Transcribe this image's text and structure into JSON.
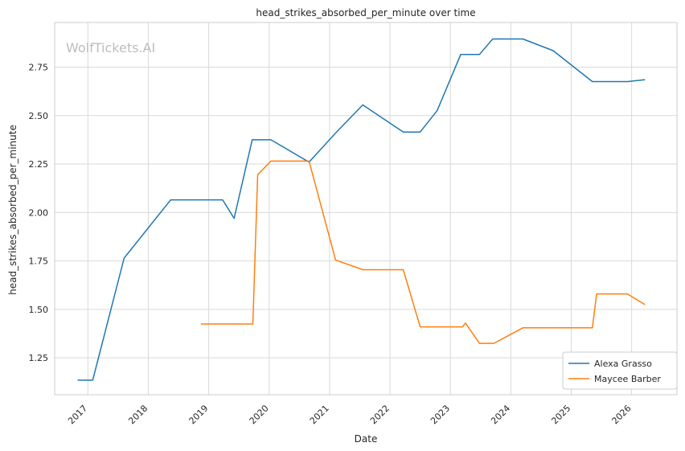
{
  "watermark": "WolfTickets.AI",
  "chart_data": {
    "type": "line",
    "title": "head_strikes_absorbed_per_minute over time",
    "xlabel": "Date",
    "ylabel": "head_strikes_absorbed_per_minute",
    "xlim": [
      2016.45,
      2026.75
    ],
    "ylim": [
      1.06,
      2.98
    ],
    "xticks": [
      2017,
      2018,
      2019,
      2020,
      2021,
      2022,
      2023,
      2024,
      2025,
      2026
    ],
    "xtick_labels": [
      "2017",
      "2018",
      "2019",
      "2020",
      "2021",
      "2022",
      "2023",
      "2024",
      "2025",
      "2026"
    ],
    "yticks": [
      1.25,
      1.5,
      1.75,
      2.0,
      2.25,
      2.5,
      2.75
    ],
    "ytick_labels": [
      "1.25",
      "1.50",
      "1.75",
      "2.00",
      "2.25",
      "2.50",
      "2.75"
    ],
    "grid": true,
    "legend_position": "lower-right",
    "series": [
      {
        "name": "Alexa Grasso",
        "color": "#1f77b4",
        "x": [
          2016.83,
          2017.08,
          2017.6,
          2018.37,
          2019.23,
          2019.42,
          2019.72,
          2020.03,
          2020.66,
          2021.1,
          2021.55,
          2022.22,
          2022.5,
          2022.78,
          2023.17,
          2023.48,
          2023.7,
          2024.2,
          2024.7,
          2025.35,
          2025.93,
          2026.22
        ],
        "y": [
          1.135,
          1.135,
          1.765,
          2.065,
          2.065,
          1.97,
          2.375,
          2.375,
          2.26,
          2.41,
          2.555,
          2.415,
          2.415,
          2.525,
          2.815,
          2.815,
          2.895,
          2.895,
          2.835,
          2.675,
          2.675,
          2.685
        ]
      },
      {
        "name": "Maycee Barber",
        "color": "#ff7f0e",
        "x": [
          2018.87,
          2019.73,
          2019.81,
          2020.03,
          2020.66,
          2021.1,
          2021.55,
          2022.22,
          2022.5,
          2022.78,
          2023.2,
          2023.25,
          2023.48,
          2023.72,
          2024.2,
          2024.7,
          2025.35,
          2025.42,
          2025.93,
          2026.22
        ],
        "y": [
          1.425,
          1.425,
          2.195,
          2.265,
          2.265,
          1.755,
          1.705,
          1.705,
          1.41,
          1.41,
          1.41,
          1.43,
          1.325,
          1.325,
          1.405,
          1.405,
          1.405,
          1.58,
          1.58,
          1.525
        ]
      }
    ]
  }
}
